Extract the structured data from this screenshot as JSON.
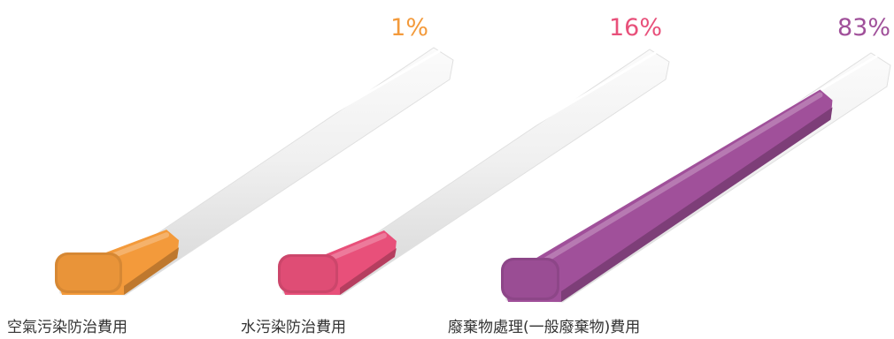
{
  "chart_data": {
    "type": "bar",
    "categories": [
      "空氣污染防治費用",
      "水污染防治費用",
      "廢棄物處理(一般廢棄物)費用"
    ],
    "values": [
      1,
      16,
      83
    ],
    "value_labels": [
      "1%",
      "16%",
      "83%"
    ],
    "ylim": [
      0,
      100
    ],
    "colors": [
      "#f39a3b",
      "#e8507a",
      "#a0509a"
    ],
    "grid": false,
    "legend": "none"
  }
}
